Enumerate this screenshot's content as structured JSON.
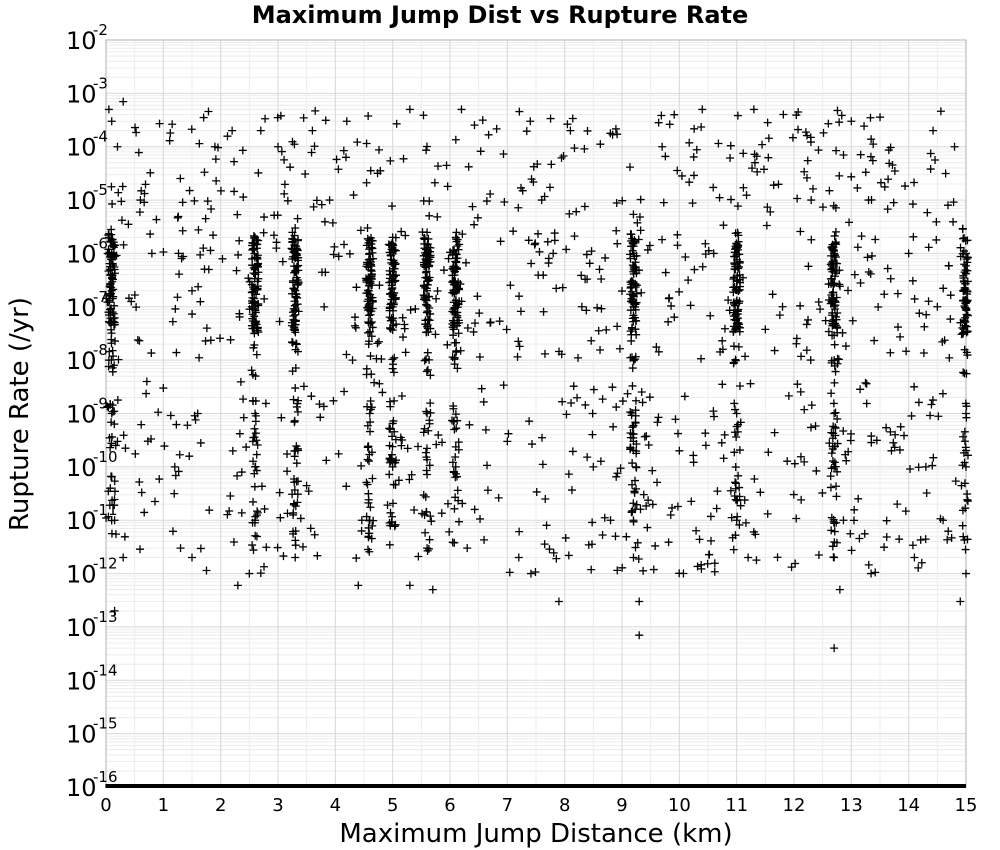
{
  "chart_data": {
    "type": "scatter",
    "title": "Maximum Jump Dist vs Rupture Rate",
    "xlabel": "Maximum Jump Distance (km)",
    "ylabel": "Rupture Rate (/yr)",
    "xlim": [
      0,
      15
    ],
    "ylim": [
      1e-16,
      0.01
    ],
    "y_scale": "log",
    "grid": true,
    "marker": "plus",
    "marker_color": "#000000",
    "x_ticks": [
      "0",
      "1",
      "2",
      "3",
      "4",
      "5",
      "6",
      "7",
      "8",
      "9",
      "10",
      "11",
      "12",
      "13",
      "14",
      "15"
    ],
    "y_ticks": [
      {
        "base": "10",
        "exp": "-2"
      },
      {
        "base": "10",
        "exp": "-3"
      },
      {
        "base": "10",
        "exp": "-4"
      },
      {
        "base": "10",
        "exp": "-5"
      },
      {
        "base": "10",
        "exp": "-6"
      },
      {
        "base": "10",
        "exp": "-7"
      },
      {
        "base": "10",
        "exp": "-8"
      },
      {
        "base": "10",
        "exp": "-9"
      },
      {
        "base": "10",
        "exp": "-10"
      },
      {
        "base": "10",
        "exp": "-11"
      },
      {
        "base": "10",
        "exp": "-12"
      },
      {
        "base": "10",
        "exp": "-13"
      },
      {
        "base": "10",
        "exp": "-14"
      },
      {
        "base": "10",
        "exp": "-15"
      },
      {
        "base": "10",
        "exp": "-16"
      }
    ],
    "dense_columns_km": [
      0.1,
      2.6,
      3.3,
      4.6,
      5.0,
      5.6,
      6.1,
      9.2,
      11.0,
      12.7,
      15.0
    ],
    "points": [
      {
        "x": 0.05,
        "y": 0.0005
      },
      {
        "x": 0.1,
        "y": 0.0003
      },
      {
        "x": 0.2,
        "y": 0.0001
      },
      {
        "x": 0.3,
        "y": 0.0007
      },
      {
        "x": 0.05,
        "y": 2e-06
      },
      {
        "x": 0.1,
        "y": 1e-06
      },
      {
        "x": 0.15,
        "y": 5e-07
      },
      {
        "x": 0.1,
        "y": 2e-07
      },
      {
        "x": 0.05,
        "y": 1e-08
      },
      {
        "x": 0.1,
        "y": 1e-09
      },
      {
        "x": 0.2,
        "y": 3e-10
      },
      {
        "x": 0.15,
        "y": 1e-11
      },
      {
        "x": 0.3,
        "y": 2e-12
      },
      {
        "x": 0.15,
        "y": 2e-13
      },
      {
        "x": 0.6,
        "y": 1e-05
      },
      {
        "x": 0.8,
        "y": 1e-06
      },
      {
        "x": 1.0,
        "y": 3e-09
      },
      {
        "x": 1.2,
        "y": 1e-10
      },
      {
        "x": 1.3,
        "y": 3e-12
      },
      {
        "x": 1.5,
        "y": 2e-12
      },
      {
        "x": 1.5,
        "y": 2e-07
      },
      {
        "x": 1.6,
        "y": 1e-09
      },
      {
        "x": 1.9,
        "y": 0.0001
      },
      {
        "x": 2.2,
        "y": 0.0002
      },
      {
        "x": 2.3,
        "y": 6e-13
      },
      {
        "x": 2.5,
        "y": 1e-12
      },
      {
        "x": 2.6,
        "y": 2e-06
      },
      {
        "x": 2.6,
        "y": 5e-07
      },
      {
        "x": 2.6,
        "y": 1e-07
      },
      {
        "x": 2.6,
        "y": 1e-09
      },
      {
        "x": 2.6,
        "y": 1e-10
      },
      {
        "x": 2.6,
        "y": 1e-11
      },
      {
        "x": 2.7,
        "y": 0.0002
      },
      {
        "x": 3.0,
        "y": 0.0001
      },
      {
        "x": 3.3,
        "y": 3e-06
      },
      {
        "x": 3.3,
        "y": 1e-06
      },
      {
        "x": 3.3,
        "y": 2e-07
      },
      {
        "x": 3.3,
        "y": 3e-09
      },
      {
        "x": 3.3,
        "y": 2e-10
      },
      {
        "x": 3.3,
        "y": 2e-12
      },
      {
        "x": 3.6,
        "y": 0.0002
      },
      {
        "x": 3.9,
        "y": 1e-05
      },
      {
        "x": 4.2,
        "y": 0.0003
      },
      {
        "x": 4.3,
        "y": 1e-08
      },
      {
        "x": 4.4,
        "y": 6e-13
      },
      {
        "x": 4.6,
        "y": 1e-06
      },
      {
        "x": 4.6,
        "y": 3e-07
      },
      {
        "x": 4.6,
        "y": 1e-09
      },
      {
        "x": 4.6,
        "y": 1e-11
      },
      {
        "x": 5.0,
        "y": 2e-06
      },
      {
        "x": 5.0,
        "y": 4e-07
      },
      {
        "x": 5.0,
        "y": 1e-10
      },
      {
        "x": 5.3,
        "y": 0.0005
      },
      {
        "x": 5.3,
        "y": 6e-13
      },
      {
        "x": 5.6,
        "y": 1e-06
      },
      {
        "x": 5.6,
        "y": 2e-07
      },
      {
        "x": 5.6,
        "y": 1e-09
      },
      {
        "x": 5.6,
        "y": 3e-12
      },
      {
        "x": 5.7,
        "y": 5e-13
      },
      {
        "x": 6.1,
        "y": 2e-06
      },
      {
        "x": 6.1,
        "y": 5e-07
      },
      {
        "x": 6.1,
        "y": 1e-10
      },
      {
        "x": 6.2,
        "y": 0.0005
      },
      {
        "x": 6.3,
        "y": 3e-12
      },
      {
        "x": 6.7,
        "y": 5e-08
      },
      {
        "x": 7.0,
        "y": 3e-10
      },
      {
        "x": 7.2,
        "y": 2e-12
      },
      {
        "x": 7.4,
        "y": 0.0003
      },
      {
        "x": 7.6,
        "y": 1e-05
      },
      {
        "x": 7.8,
        "y": 1e-06
      },
      {
        "x": 7.9,
        "y": 3e-13
      },
      {
        "x": 8.1,
        "y": 0.0002
      },
      {
        "x": 8.3,
        "y": 1e-07
      },
      {
        "x": 8.5,
        "y": 1e-10
      },
      {
        "x": 8.8,
        "y": 1e-11
      },
      {
        "x": 9.2,
        "y": 1e-06
      },
      {
        "x": 9.2,
        "y": 1e-07
      },
      {
        "x": 9.2,
        "y": 1e-08
      },
      {
        "x": 9.2,
        "y": 3e-10
      },
      {
        "x": 9.2,
        "y": 1e-11
      },
      {
        "x": 9.2,
        "y": 2e-12
      },
      {
        "x": 9.3,
        "y": 7e-14
      },
      {
        "x": 9.3,
        "y": 3e-13
      },
      {
        "x": 9.7,
        "y": 0.0001
      },
      {
        "x": 10.0,
        "y": 2e-10
      },
      {
        "x": 10.4,
        "y": 0.0005
      },
      {
        "x": 10.6,
        "y": 1e-06
      },
      {
        "x": 11.0,
        "y": 1.5e-06
      },
      {
        "x": 11.0,
        "y": 3e-07
      },
      {
        "x": 11.0,
        "y": 1e-09
      },
      {
        "x": 11.0,
        "y": 1e-11
      },
      {
        "x": 11.2,
        "y": 2e-12
      },
      {
        "x": 11.3,
        "y": 0.0005
      },
      {
        "x": 11.8,
        "y": 1e-07
      },
      {
        "x": 12.3,
        "y": 1e-05
      },
      {
        "x": 12.7,
        "y": 1e-06
      },
      {
        "x": 12.7,
        "y": 1e-07
      },
      {
        "x": 12.7,
        "y": 1e-08
      },
      {
        "x": 12.7,
        "y": 1e-09
      },
      {
        "x": 12.7,
        "y": 1e-10
      },
      {
        "x": 12.7,
        "y": 2e-12
      },
      {
        "x": 12.7,
        "y": 4e-14
      },
      {
        "x": 12.8,
        "y": 5e-13
      },
      {
        "x": 13.0,
        "y": 0.0003
      },
      {
        "x": 13.3,
        "y": 1e-05
      },
      {
        "x": 13.7,
        "y": 2e-10
      },
      {
        "x": 13.8,
        "y": 2e-11
      },
      {
        "x": 14.0,
        "y": 1e-06
      },
      {
        "x": 14.1,
        "y": 2e-12
      },
      {
        "x": 14.3,
        "y": 1e-10
      },
      {
        "x": 14.5,
        "y": 1e-07
      },
      {
        "x": 14.6,
        "y": 1e-11
      },
      {
        "x": 14.8,
        "y": 0.0001
      },
      {
        "x": 15.0,
        "y": 1e-06
      },
      {
        "x": 15.0,
        "y": 1e-09
      },
      {
        "x": 15.0,
        "y": 1e-10
      },
      {
        "x": 14.9,
        "y": 3e-13
      },
      {
        "x": 15.0,
        "y": 1e-12
      }
    ],
    "floor_row": {
      "y": 1e-16,
      "x_range": [
        0,
        15
      ],
      "note_visible": false
    }
  }
}
